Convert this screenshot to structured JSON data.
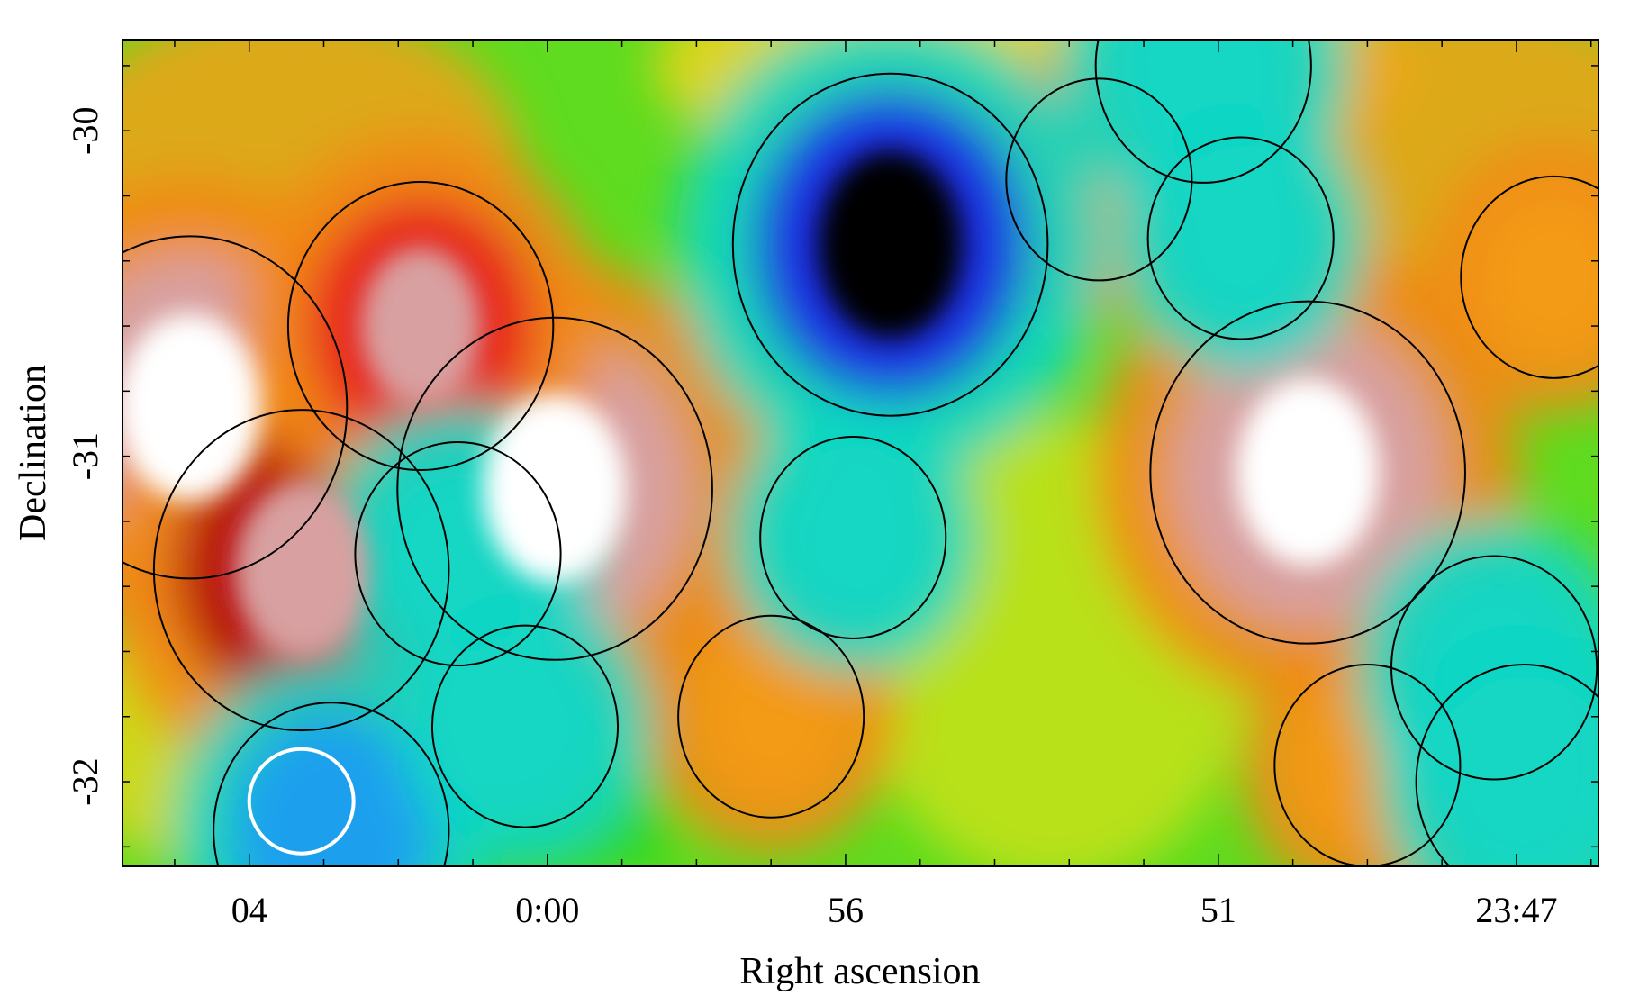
{
  "chart_data": {
    "type": "heatmap",
    "title": "",
    "xlabel": "Right ascension",
    "ylabel": "Declination",
    "x_axis": {
      "direction": "decreasing-right",
      "ticks": [
        {
          "label": "04",
          "ra_min": 4
        },
        {
          "label": "0:00",
          "ra_min": 0
        },
        {
          "label": "56",
          "ra_min": -4
        },
        {
          "label": "51",
          "ra_min": -9
        },
        {
          "label": "23:47",
          "ra_min": -13
        }
      ],
      "xlim": [
        5.7,
        -14.1
      ]
    },
    "y_axis": {
      "ticks": [
        {
          "label": "-30",
          "dec": -30
        },
        {
          "label": "-31",
          "dec": -31
        },
        {
          "label": "-32",
          "dec": -32
        }
      ],
      "ylim": [
        -32.26,
        -29.72
      ]
    },
    "colormap": [
      "#000000",
      "#7b0fb5",
      "#1f2ee0",
      "#1aa0ee",
      "#12d6c4",
      "#23d61c",
      "#b6e21a",
      "#f2d414",
      "#f39a16",
      "#e8201a",
      "#b8100e",
      "#d8a0a0",
      "#ffffff"
    ],
    "contours_drawn": true,
    "contour_color": "#000000",
    "beam_marker": {
      "shape": "circle",
      "color": "#ffffff",
      "ra_min": 3.3,
      "dec": -32.06
    },
    "features": [
      {
        "kind": "max",
        "ra_min": 4.8,
        "dec": -30.85,
        "level": 1.0
      },
      {
        "kind": "max",
        "ra_min": 3.3,
        "dec": -31.35,
        "level": 0.9
      },
      {
        "kind": "max",
        "ra_min": -0.1,
        "dec": -31.1,
        "level": 1.0
      },
      {
        "kind": "max",
        "ra_min": 1.7,
        "dec": -30.6,
        "level": 0.75
      },
      {
        "kind": "max",
        "ra_min": -10.2,
        "dec": -31.05,
        "level": 1.0
      },
      {
        "kind": "max",
        "ra_min": -13.5,
        "dec": -30.45,
        "level": 0.35
      },
      {
        "kind": "max",
        "ra_min": -7.4,
        "dec": -30.15,
        "level": 0.35
      },
      {
        "kind": "max",
        "ra_min": -3.0,
        "dec": -31.8,
        "level": 0.35
      },
      {
        "kind": "max",
        "ra_min": -11.0,
        "dec": -31.95,
        "level": 0.35
      },
      {
        "kind": "min",
        "ra_min": -4.6,
        "dec": -30.35,
        "level": -1.0
      },
      {
        "kind": "min",
        "ra_min": -8.8,
        "dec": -29.8,
        "level": -0.5
      },
      {
        "kind": "min",
        "ra_min": 1.2,
        "dec": -31.3,
        "level": -0.45
      },
      {
        "kind": "min",
        "ra_min": 2.9,
        "dec": -32.15,
        "level": -0.6
      },
      {
        "kind": "min",
        "ra_min": -4.1,
        "dec": -31.25,
        "level": -0.35
      },
      {
        "kind": "min",
        "ra_min": -12.7,
        "dec": -31.65,
        "level": -0.45
      },
      {
        "kind": "min",
        "ra_min": -13.1,
        "dec": -32.0,
        "level": -0.5
      },
      {
        "kind": "min",
        "ra_min": -9.3,
        "dec": -30.33,
        "level": -0.35
      },
      {
        "kind": "min",
        "ra_min": 0.3,
        "dec": -31.83,
        "level": -0.35
      }
    ]
  }
}
